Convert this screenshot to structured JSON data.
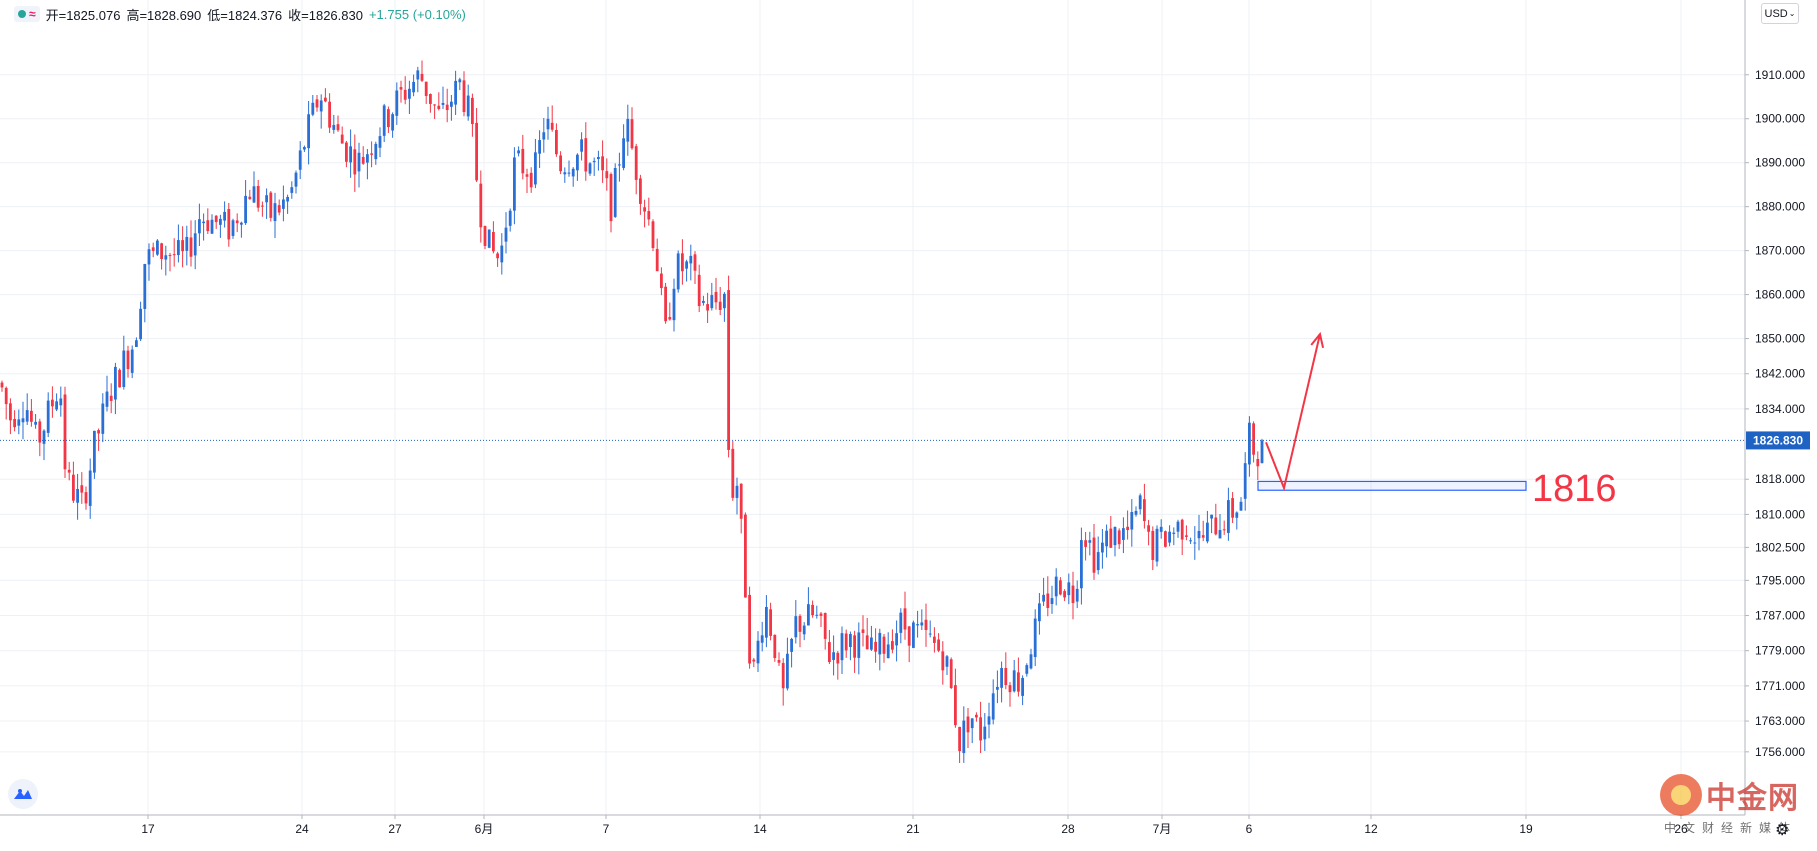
{
  "legend": {
    "open_label": "开",
    "open": "1825.076",
    "high_label": "高",
    "high": "1828.690",
    "low_label": "低",
    "low": "1824.376",
    "close_label": "收",
    "close": "1826.830",
    "change": "+1.755",
    "change_pct": "(+0.10%)"
  },
  "currency": "USD",
  "price_tag": "1826.830",
  "annotation": {
    "level_label": "1816"
  },
  "watermark": {
    "name": "中金网",
    "sub": "中文财经新媒体"
  },
  "colors": {
    "up": "#2a6fd6",
    "down": "#f23645",
    "grid": "#edf0f5",
    "price_line": "#1e63c4",
    "annotation": "#f23645"
  },
  "icons": [
    "tradingview-logo-icon",
    "settings-gear-icon"
  ],
  "chart_data": {
    "type": "candlestick",
    "y_axis_labels": [
      "1910.000",
      "1900.000",
      "1890.000",
      "1880.000",
      "1870.000",
      "1860.000",
      "1850.000",
      "1842.000",
      "1834.000",
      "1826.830",
      "1818.000",
      "1810.000",
      "1802.500",
      "1795.000",
      "1787.000",
      "1779.000",
      "1771.000",
      "1763.000",
      "1756.000"
    ],
    "ylim": [
      1748,
      1922
    ],
    "x_ticks": [
      "17",
      "24",
      "27",
      "6月",
      "7",
      "14",
      "21",
      "28",
      "7月",
      "6",
      "12",
      "19",
      "26"
    ],
    "current_price": 1826.83,
    "support_zone": [
      1815.5,
      1817.5
    ],
    "projection_path": [
      [
        1266,
        1826.4
      ],
      [
        1284,
        1816
      ],
      [
        1320,
        1851
      ]
    ],
    "grid": true,
    "path_keypoints": [
      [
        0,
        1840
      ],
      [
        10,
        1832
      ],
      [
        25,
        1836
      ],
      [
        37,
        1826
      ],
      [
        60,
        1840
      ],
      [
        66,
        1818
      ],
      [
        82,
        1812
      ],
      [
        95,
        1826
      ],
      [
        110,
        1838
      ],
      [
        135,
        1850
      ],
      [
        145,
        1868
      ],
      [
        165,
        1870
      ],
      [
        185,
        1868
      ],
      [
        200,
        1878
      ],
      [
        230,
        1875
      ],
      [
        250,
        1884
      ],
      [
        270,
        1878
      ],
      [
        290,
        1882
      ],
      [
        305,
        1895
      ],
      [
        320,
        1906
      ],
      [
        340,
        1895
      ],
      [
        360,
        1890
      ],
      [
        380,
        1898
      ],
      [
        400,
        1905
      ],
      [
        420,
        1910
      ],
      [
        440,
        1900
      ],
      [
        460,
        1908
      ],
      [
        470,
        1900
      ],
      [
        480,
        1880
      ],
      [
        490,
        1870
      ],
      [
        500,
        1868
      ],
      [
        515,
        1890
      ],
      [
        535,
        1888
      ],
      [
        545,
        1900
      ],
      [
        560,
        1890
      ],
      [
        580,
        1892
      ],
      [
        600,
        1888
      ],
      [
        612,
        1880
      ],
      [
        625,
        1900
      ],
      [
        635,
        1890
      ],
      [
        645,
        1880
      ],
      [
        655,
        1872
      ],
      [
        665,
        1850
      ],
      [
        675,
        1866
      ],
      [
        690,
        1866
      ],
      [
        700,
        1858
      ],
      [
        715,
        1858
      ],
      [
        725,
        1860
      ],
      [
        730,
        1812
      ],
      [
        736,
        1820
      ],
      [
        745,
        1795
      ],
      [
        752,
        1772
      ],
      [
        765,
        1790
      ],
      [
        775,
        1780
      ],
      [
        782,
        1767
      ],
      [
        795,
        1785
      ],
      [
        815,
        1787
      ],
      [
        830,
        1778
      ],
      [
        850,
        1782
      ],
      [
        875,
        1778
      ],
      [
        900,
        1785
      ],
      [
        925,
        1782
      ],
      [
        945,
        1778
      ],
      [
        960,
        1758
      ],
      [
        970,
        1765
      ],
      [
        980,
        1760
      ],
      [
        990,
        1768
      ],
      [
        1000,
        1775
      ],
      [
        1020,
        1772
      ],
      [
        1030,
        1780
      ],
      [
        1045,
        1790
      ],
      [
        1060,
        1795
      ],
      [
        1075,
        1792
      ],
      [
        1082,
        1808
      ],
      [
        1095,
        1800
      ],
      [
        1110,
        1805
      ],
      [
        1130,
        1806
      ],
      [
        1140,
        1812
      ],
      [
        1150,
        1802
      ],
      [
        1170,
        1806
      ],
      [
        1185,
        1808
      ],
      [
        1200,
        1804
      ],
      [
        1215,
        1808
      ],
      [
        1230,
        1810
      ],
      [
        1243,
        1814
      ],
      [
        1248,
        1828
      ],
      [
        1255,
        1824
      ],
      [
        1266,
        1826.8
      ]
    ]
  }
}
